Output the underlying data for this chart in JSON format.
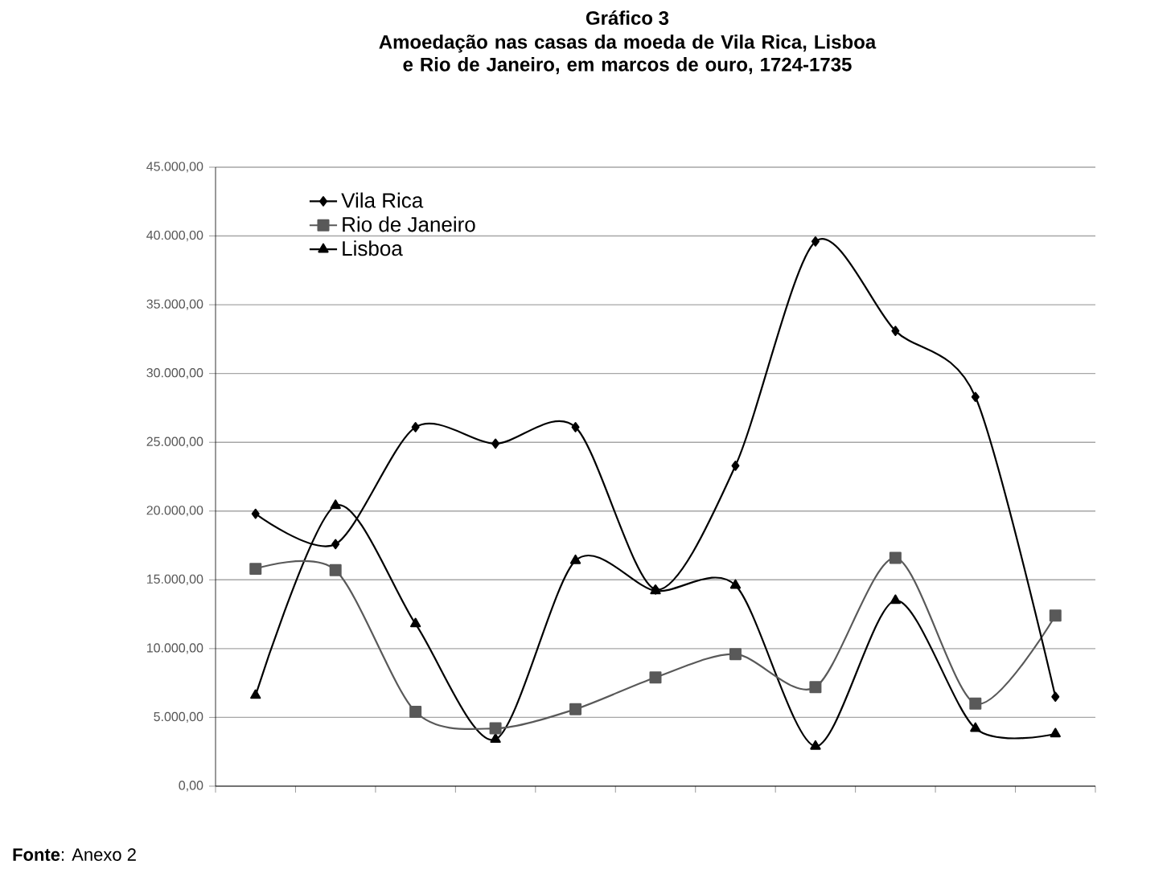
{
  "chart_data": {
    "type": "line",
    "title": "Gráfico 3",
    "subtitle": "Amoedação nas casas da moeda de Vila Rica, Lisboa e Rio de Janeiro, em marcos de ouro, 1724-1735",
    "categories": [
      null,
      null,
      null,
      null,
      null,
      null,
      null,
      null,
      null,
      null,
      null
    ],
    "series": [
      {
        "name": "Vila Rica",
        "color": "#000000",
        "marker": "diamond",
        "values": [
          19800,
          17600,
          26100,
          24900,
          26100,
          14300,
          23300,
          39600,
          33100,
          28300,
          6500
        ]
      },
      {
        "name": "Rio de Janeiro",
        "color": "#595959",
        "marker": "square",
        "values": [
          15800,
          15700,
          5400,
          4200,
          5600,
          7900,
          9600,
          7200,
          16600,
          6000,
          12400
        ]
      },
      {
        "name": "Lisboa",
        "color": "#000000",
        "marker": "triangle",
        "values": [
          6600,
          20400,
          11800,
          3400,
          16400,
          14200,
          14600,
          2900,
          13500,
          4200,
          3800
        ]
      }
    ],
    "ylim": [
      0,
      45000
    ],
    "yticks": [
      {
        "value": 0,
        "label": "0,00"
      },
      {
        "value": 5000,
        "label": "5.000,00"
      },
      {
        "value": 10000,
        "label": "10.000,00"
      },
      {
        "value": 15000,
        "label": "15.000,00"
      },
      {
        "value": 20000,
        "label": "20.000,00"
      },
      {
        "value": 25000,
        "label": "25.000,00"
      },
      {
        "value": 30000,
        "label": "30.000,00"
      },
      {
        "value": 35000,
        "label": "35.000,00"
      },
      {
        "value": 40000,
        "label": "40.000,00"
      },
      {
        "value": 45000,
        "label": "45.000,00"
      }
    ],
    "grid": "y",
    "legend": "top left",
    "tick_labels": "y",
    "line_style": "solid",
    "annotations": [
      "**Fonte**: Anexo 2"
    ]
  }
}
